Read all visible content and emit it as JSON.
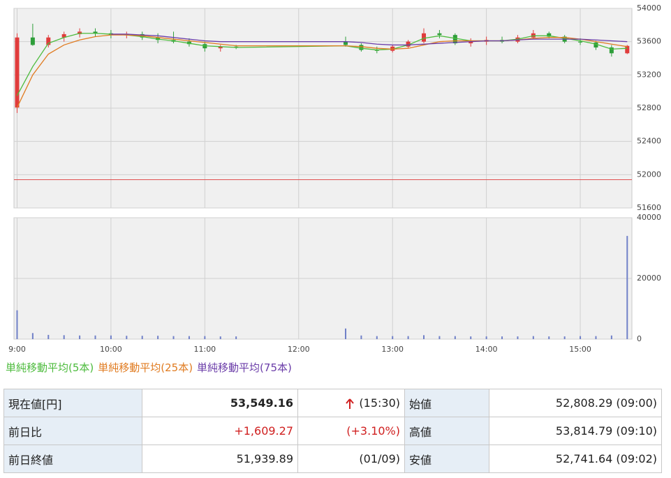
{
  "chart_data": [
    {
      "type": "candlestick",
      "up_color": "#e03c3c",
      "down_color": "#2e9e3a",
      "xlim": [
        "8:58",
        "15:33"
      ],
      "ylim": [
        51600,
        54000
      ],
      "yticks": [
        51600,
        52000,
        52400,
        52800,
        53200,
        53600,
        54000
      ],
      "grid": true,
      "reference_line": 51939.89,
      "reference_color": "#e05050",
      "x": [
        "9:00",
        "9:10",
        "9:20",
        "9:30",
        "9:40",
        "9:50",
        "10:00",
        "10:10",
        "10:20",
        "10:30",
        "10:40",
        "10:50",
        "11:00",
        "11:10",
        "11:20",
        "12:30",
        "12:40",
        "12:50",
        "13:00",
        "13:10",
        "13:20",
        "13:30",
        "13:40",
        "13:50",
        "14:00",
        "14:10",
        "14:20",
        "14:30",
        "14:40",
        "14:50",
        "15:00",
        "15:10",
        "15:20",
        "15:30"
      ],
      "open": [
        52808,
        53650,
        53560,
        53650,
        53690,
        53720,
        53700,
        53680,
        53690,
        53650,
        53620,
        53600,
        53570,
        53520,
        53540,
        53600,
        53560,
        53500,
        53490,
        53540,
        53600,
        53700,
        53680,
        53580,
        53600,
        53620,
        53600,
        53650,
        53700,
        53660,
        53600,
        53590,
        53530,
        53460
      ],
      "high": [
        53700,
        53815,
        53680,
        53720,
        53760,
        53760,
        53740,
        53720,
        53720,
        53700,
        53720,
        53640,
        53600,
        53560,
        53560,
        53660,
        53580,
        53540,
        53560,
        53620,
        53760,
        53740,
        53700,
        53640,
        53660,
        53660,
        53680,
        53740,
        53720,
        53680,
        53640,
        53610,
        53560,
        53560
      ],
      "low": [
        52742,
        53550,
        53530,
        53600,
        53650,
        53660,
        53640,
        53640,
        53620,
        53580,
        53580,
        53540,
        53480,
        53480,
        53510,
        53540,
        53480,
        53460,
        53470,
        53520,
        53580,
        53640,
        53560,
        53540,
        53560,
        53580,
        53580,
        53630,
        53640,
        53580,
        53560,
        53500,
        53420,
        53450
      ],
      "close": [
        53650,
        53560,
        53650,
        53690,
        53720,
        53700,
        53680,
        53690,
        53650,
        53620,
        53600,
        53570,
        53520,
        53540,
        53530,
        53560,
        53500,
        53490,
        53540,
        53600,
        53700,
        53680,
        53580,
        53600,
        53620,
        53600,
        53650,
        53700,
        53660,
        53600,
        53590,
        53530,
        53460,
        53549.16
      ],
      "series": [
        {
          "name": "単純移動平均(5本)",
          "color": "#4cbb3c",
          "values": [
            52950,
            53300,
            53580,
            53650,
            53700,
            53700,
            53690,
            53680,
            53660,
            53630,
            53610,
            53580,
            53550,
            53540,
            53530,
            53550,
            53520,
            53500,
            53510,
            53560,
            53640,
            53670,
            53640,
            53610,
            53610,
            53610,
            53630,
            53670,
            53670,
            53640,
            53610,
            53570,
            53510,
            53520
          ]
        },
        {
          "name": "単純移動平均(25本)",
          "color": "#e07b20",
          "values": [
            52808,
            53200,
            53450,
            53560,
            53620,
            53660,
            53680,
            53680,
            53670,
            53650,
            53630,
            53610,
            53590,
            53570,
            53550,
            53550,
            53540,
            53520,
            53510,
            53520,
            53560,
            53600,
            53610,
            53610,
            53610,
            53610,
            53620,
            53640,
            53650,
            53650,
            53630,
            53600,
            53570,
            53540
          ]
        },
        {
          "name": "単純移動平均(75本)",
          "color": "#6a3ca8",
          "values": [
            null,
            null,
            null,
            null,
            null,
            null,
            53690,
            53690,
            53680,
            53670,
            53650,
            53630,
            53610,
            53600,
            53600,
            53600,
            53590,
            53570,
            53560,
            53560,
            53570,
            53580,
            53590,
            53600,
            53610,
            53610,
            53620,
            53630,
            53630,
            53630,
            53630,
            53620,
            53610,
            53600
          ]
        }
      ]
    },
    {
      "type": "bar",
      "color": "#7080c8",
      "xlim": [
        "8:58",
        "15:33"
      ],
      "xticks": [
        "9:00",
        "10:00",
        "11:00",
        "12:00",
        "13:00",
        "14:00",
        "15:00"
      ],
      "ylim": [
        0,
        40000
      ],
      "yticks": [
        0,
        20000,
        40000
      ],
      "grid": true,
      "x": [
        "9:00",
        "9:10",
        "9:20",
        "9:30",
        "9:40",
        "9:50",
        "10:00",
        "10:10",
        "10:20",
        "10:30",
        "10:40",
        "10:50",
        "11:00",
        "11:10",
        "11:20",
        "12:30",
        "12:40",
        "12:50",
        "13:00",
        "13:10",
        "13:20",
        "13:30",
        "13:40",
        "13:50",
        "14:00",
        "14:10",
        "14:20",
        "14:30",
        "14:40",
        "14:50",
        "15:00",
        "15:10",
        "15:20",
        "15:30"
      ],
      "values": [
        9500,
        2000,
        1400,
        1300,
        1200,
        1200,
        1200,
        1100,
        1100,
        1100,
        1000,
        1000,
        1000,
        900,
        900,
        3500,
        1200,
        1000,
        1000,
        1000,
        1300,
        1000,
        1000,
        900,
        900,
        900,
        900,
        1000,
        900,
        900,
        1000,
        1000,
        1200,
        34000
      ]
    }
  ],
  "table": {
    "rows": [
      [
        "現在値[円]",
        "53,549.16",
        "(15:30)",
        "始値",
        "52,808.29 (09:00)"
      ],
      [
        "前日比",
        "+1,609.27",
        "(+3.10%)",
        "高値",
        "53,814.79 (09:10)"
      ],
      [
        "前日終値",
        "51,939.89",
        "(01/09)",
        "安値",
        "52,741.64 (09:02)"
      ]
    ]
  }
}
